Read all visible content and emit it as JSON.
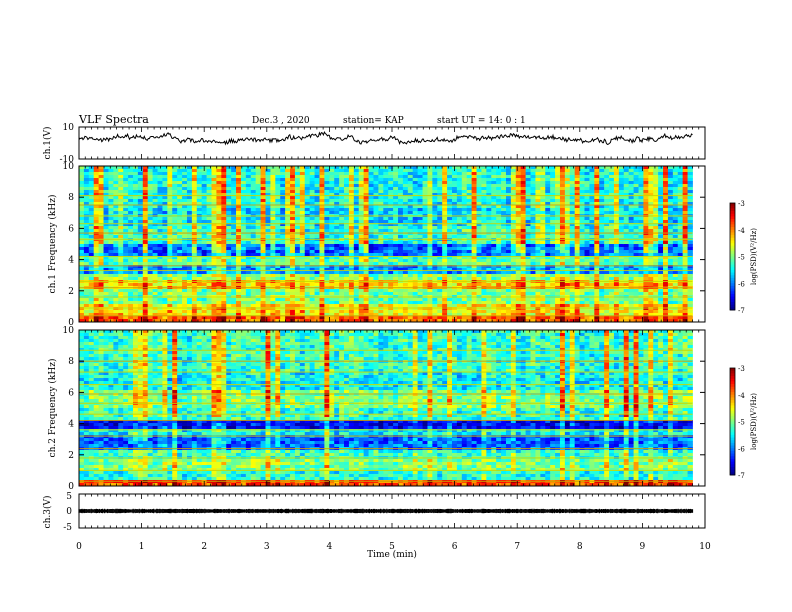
{
  "header": {
    "title": "VLF Spectra",
    "date": "Dec.3 , 2020",
    "station": "station= KAP",
    "start": "start UT = 14: 0 : 1"
  },
  "chart_data": [
    {
      "type": "line",
      "name": "ch1-waveform",
      "ylabel": "ch.1(V)",
      "ylim": [
        -10,
        10
      ],
      "ytick_labels": [
        "10",
        "-10"
      ],
      "xlim": [
        0,
        10
      ],
      "x_data_end": 9.8,
      "description_values": {
        "mean": 2.5,
        "range": [
          -3,
          7
        ]
      }
    },
    {
      "type": "heatmap",
      "name": "ch1-spectrogram",
      "ylabel": "ch.1 Frequency (kHz)",
      "ylim": [
        0,
        10
      ],
      "yticks": [
        "0",
        "2",
        "4",
        "6",
        "8",
        "10"
      ],
      "xlim": [
        0,
        10
      ],
      "x_data_end": 9.8,
      "colorbar": {
        "label": "log(PSD)(V²/Hz)",
        "range": [
          -7,
          -3
        ],
        "ticks": [
          "-3",
          "-4",
          "-5",
          "-6",
          "-7"
        ]
      },
      "bands": [
        {
          "f": [
            0,
            0.4
          ],
          "v": -3.9
        },
        {
          "f": [
            0.4,
            1.2
          ],
          "v": -4.5
        },
        {
          "f": [
            1.2,
            2.2
          ],
          "v": -5.1
        },
        {
          "f": [
            2.2,
            2.6
          ],
          "v": -4.4
        },
        {
          "f": [
            2.6,
            3.0
          ],
          "v": -5.0
        },
        {
          "f": [
            3.0,
            3.6
          ],
          "v": -5.9
        },
        {
          "f": [
            3.6,
            4.2
          ],
          "v": -5.2
        },
        {
          "f": [
            4.2,
            5.0
          ],
          "v": -6.1
        },
        {
          "f": [
            5.0,
            6.2
          ],
          "v": -5.3
        },
        {
          "f": [
            6.2,
            7.4
          ],
          "v": -5.6
        },
        {
          "f": [
            7.4,
            10
          ],
          "v": -5.4
        }
      ],
      "lines_khz": [
        0.4,
        0.9,
        1.6,
        2.2,
        2.6,
        3.3,
        3.6,
        4.2,
        5.3,
        5.7,
        6.3,
        6.8,
        7.5,
        8.1
      ]
    },
    {
      "type": "heatmap",
      "name": "ch2-spectrogram",
      "ylabel": "ch.2 Frequency (kHz)",
      "ylim": [
        0,
        10
      ],
      "yticks": [
        "0",
        "2",
        "4",
        "6",
        "8",
        "10"
      ],
      "xlim": [
        0,
        10
      ],
      "x_data_end": 9.8,
      "colorbar": {
        "label": "log(PSD)(V²/Hz)",
        "range": [
          -7,
          -3
        ],
        "ticks": [
          "-3",
          "-4",
          "-5",
          "-6",
          "-7"
        ]
      },
      "bands": [
        {
          "f": [
            0,
            0.3
          ],
          "v": -3.8
        },
        {
          "f": [
            0.3,
            1.0
          ],
          "v": -5.4
        },
        {
          "f": [
            1.0,
            1.8
          ],
          "v": -5.0
        },
        {
          "f": [
            1.8,
            2.4
          ],
          "v": -5.3
        },
        {
          "f": [
            2.4,
            3.2
          ],
          "v": -6.1
        },
        {
          "f": [
            3.2,
            3.6
          ],
          "v": -5.5
        },
        {
          "f": [
            3.6,
            4.2
          ],
          "v": -6.5
        },
        {
          "f": [
            4.2,
            5.0
          ],
          "v": -5.3
        },
        {
          "f": [
            5.0,
            6.2
          ],
          "v": -5.0
        },
        {
          "f": [
            6.2,
            7.4
          ],
          "v": -5.5
        },
        {
          "f": [
            7.4,
            10
          ],
          "v": -5.3
        }
      ],
      "lines_khz": [
        0.3,
        1.0,
        1.8,
        2.4,
        3.2,
        3.6,
        4.2,
        4.6,
        5.3,
        5.9,
        6.5,
        7.3,
        8.0,
        8.7
      ]
    },
    {
      "type": "line",
      "name": "ch3-waveform",
      "ylabel": "ch.3(V)",
      "ylim": [
        -5,
        5
      ],
      "ytick_labels": [
        "5",
        "0",
        "-5"
      ],
      "xlim": [
        0,
        10
      ],
      "x_data_end": 9.8,
      "description_values": {
        "mean": 0,
        "range": [
          -0.6,
          0.6
        ]
      }
    }
  ],
  "xaxis": {
    "label": "Time (min)",
    "ticks": [
      "0",
      "1",
      "2",
      "3",
      "4",
      "5",
      "6",
      "7",
      "8",
      "9",
      "10"
    ]
  }
}
